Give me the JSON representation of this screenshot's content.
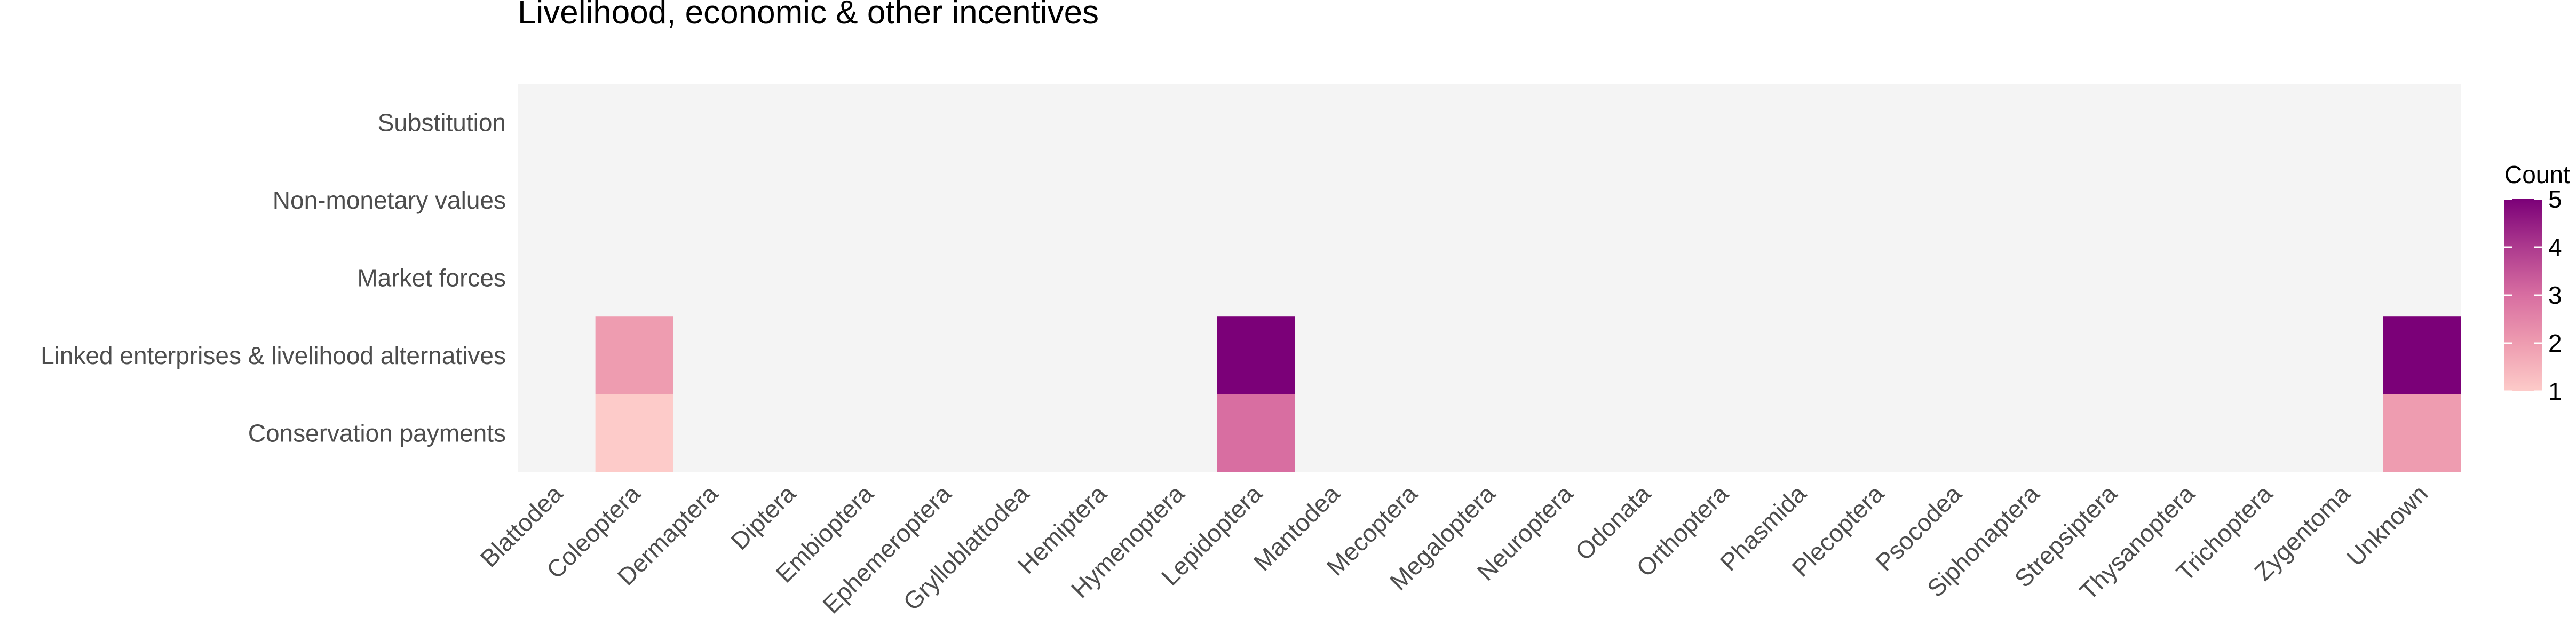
{
  "chart_data": {
    "type": "heatmap",
    "title": "Livelihood, economic & other incentives",
    "xlabel": "",
    "ylabel": "",
    "x_categories": [
      "Blattodea",
      "Coleoptera",
      "Dermaptera",
      "Diptera",
      "Embioptera",
      "Ephemeroptera",
      "Grylloblattodea",
      "Hemiptera",
      "Hymenoptera",
      "Lepidoptera",
      "Mantodea",
      "Mecoptera",
      "Megaloptera",
      "Neuroptera",
      "Odonata",
      "Orthoptera",
      "Phasmida",
      "Plecoptera",
      "Psocodea",
      "Siphonaptera",
      "Strepsiptera",
      "Thysanoptera",
      "Trichoptera",
      "Zygentoma",
      "Unknown"
    ],
    "y_categories": [
      "Substitution",
      "Non-monetary values",
      "Market forces",
      "Linked enterprises & livelihood alternatives",
      "Conservation payments"
    ],
    "cells": [
      {
        "x": "Coleoptera",
        "y": "Linked enterprises & livelihood alternatives",
        "value": 2
      },
      {
        "x": "Coleoptera",
        "y": "Conservation payments",
        "value": 1
      },
      {
        "x": "Lepidoptera",
        "y": "Linked enterprises & livelihood alternatives",
        "value": 5
      },
      {
        "x": "Lepidoptera",
        "y": "Conservation payments",
        "value": 3
      },
      {
        "x": "Unknown",
        "y": "Linked enterprises & livelihood alternatives",
        "value": 5
      },
      {
        "x": "Unknown",
        "y": "Conservation payments",
        "value": 2
      }
    ],
    "legend": {
      "title": "Count",
      "ticks": [
        1,
        2,
        3,
        4,
        5
      ],
      "range": [
        1,
        5
      ],
      "placement": "right"
    },
    "colors": {
      "low": "#fdcbc9",
      "high": "#7b0078",
      "panel_background": "#f4f4f4"
    },
    "grid": false
  }
}
